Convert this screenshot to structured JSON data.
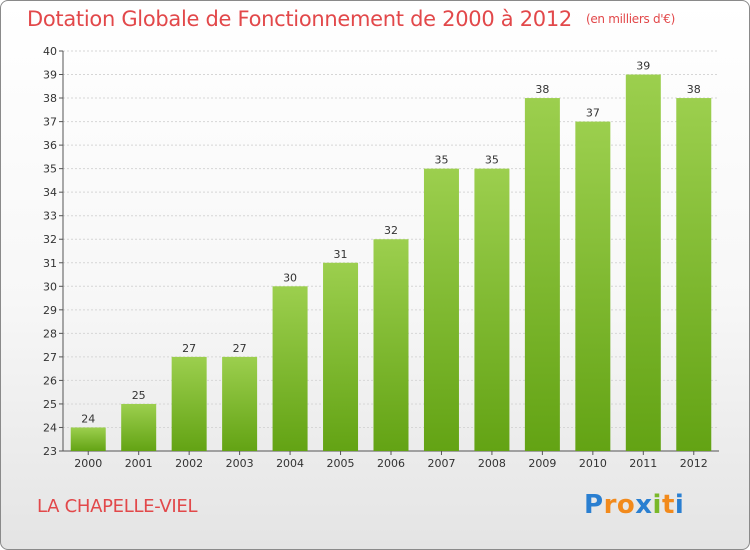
{
  "title": "Dotation Globale de Fonctionnement de 2000 à 2012",
  "unit": "(en milliers d'€)",
  "commune": "LA CHAPELLE-VIEL",
  "logo": {
    "text": "Proxiti",
    "letters": [
      {
        "ch": "P",
        "color": "#2a7fd1"
      },
      {
        "ch": "r",
        "color": "#f28a1c"
      },
      {
        "ch": "o",
        "color": "#f28a1c"
      },
      {
        "ch": "x",
        "color": "#2a7fd1"
      },
      {
        "ch": "i",
        "color": "#7ab829"
      },
      {
        "ch": "t",
        "color": "#f28a1c"
      },
      {
        "ch": "i",
        "color": "#2a7fd1"
      }
    ]
  },
  "chart_data": {
    "type": "bar",
    "title": "Dotation Globale de Fonctionnement de 2000 à 2012",
    "xlabel": "",
    "ylabel": "",
    "categories": [
      "2000",
      "2001",
      "2002",
      "2003",
      "2004",
      "2005",
      "2006",
      "2007",
      "2008",
      "2009",
      "2010",
      "2011",
      "2012"
    ],
    "values": [
      24,
      25,
      27,
      27,
      30,
      31,
      32,
      35,
      35,
      38,
      37,
      39,
      38
    ],
    "ylim": [
      23,
      40
    ],
    "yticks": [
      23,
      24,
      25,
      26,
      27,
      28,
      29,
      30,
      31,
      32,
      33,
      34,
      35,
      36,
      37,
      38,
      39,
      40
    ],
    "grid": true,
    "bar_color_top": "#9ccf4e",
    "bar_color_bottom": "#63a314",
    "legend": "none"
  }
}
